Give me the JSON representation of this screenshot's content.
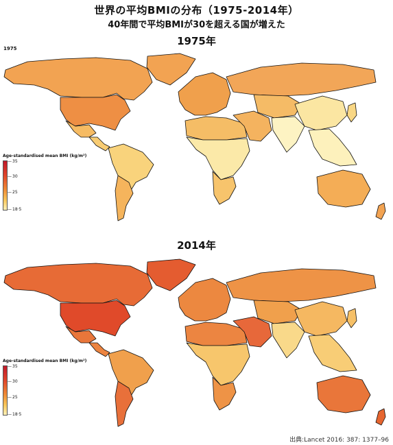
{
  "title": "世界の平均BMIの分布（1975-2014年）",
  "subtitle": "40年間で平均BMIが30を超える国が増えた",
  "source_inset_year": "1975",
  "panels": [
    {
      "heading": "1975年",
      "legend": {
        "title": "Age-standardised mean BMI (kg/m²)",
        "ticks": [
          "35",
          "30",
          "25",
          "18·5"
        ]
      },
      "colors": {
        "north_america": "#f2a352",
        "usa": "#ee8f44",
        "greenland": "#f2a352",
        "mexico": "#f6bb63",
        "central_america": "#f8cc73",
        "south_america": "#f9d37c",
        "argentina": "#f5b45c",
        "europe": "#f0a04c",
        "russia": "#f2a658",
        "north_africa": "#f5bd66",
        "subsaharan_africa": "#fbe9a8",
        "southern_africa": "#f7c46c",
        "middle_east": "#f4b35f",
        "central_asia": "#f5bb66",
        "south_asia": "#fdf3c3",
        "china": "#fbe6a2",
        "southeast_asia": "#fdf1bc",
        "japan": "#f9d784",
        "australia": "#f4ad56",
        "new_zealand": "#f2a352"
      }
    },
    {
      "heading": "2014年",
      "legend": {
        "title": "Age-standardised mean BMI (kg/m²)",
        "ticks": [
          "35",
          "30",
          "25",
          "18·5"
        ]
      },
      "colors": {
        "north_america": "#e76b36",
        "usa": "#e04a2a",
        "greenland": "#e45c30",
        "mexico": "#e9763a",
        "central_america": "#ec8440",
        "south_america": "#f0a04c",
        "argentina": "#e8703a",
        "europe": "#ec8840",
        "russia": "#ee9346",
        "north_africa": "#ec8541",
        "subsaharan_africa": "#f7c66c",
        "southern_africa": "#ee9346",
        "middle_east": "#e7683a",
        "central_asia": "#f0a04c",
        "south_asia": "#f9d98a",
        "china": "#f5b861",
        "southeast_asia": "#f8cd76",
        "japan": "#f6c067",
        "australia": "#e9763a",
        "new_zealand": "#e6652f"
      }
    }
  ],
  "source": "出典:Lancet 2016: 387: 1377–96"
}
